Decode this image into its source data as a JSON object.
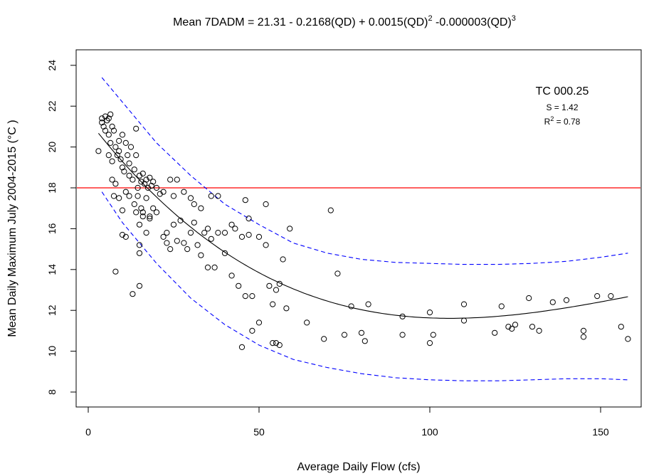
{
  "chart_data": {
    "type": "scatter",
    "title": "Mean 7DADM = 21.31 - 0.2168(QD) + 0.0015(QD)² -0.000003(QD)³",
    "title_parts": {
      "a": "Mean 7DADM = 21.31 - 0.2168(QD) + 0.0015(QD)",
      "b": " -0.000003(QD)",
      "sup2": "2",
      "sup3": "3"
    },
    "xlabel": "Average Daily Flow (cfs)",
    "ylabel": "Mean Daily Maximum July 2004-2015 (°C )",
    "xlim": [
      0,
      160
    ],
    "ylim": [
      8,
      24
    ],
    "xticks": [
      0,
      50,
      100,
      150
    ],
    "yticks": [
      8,
      10,
      12,
      14,
      16,
      18,
      20,
      22,
      24
    ],
    "grid": false,
    "annotation": {
      "site": "TC 000.25",
      "s_label": "S = 1.42",
      "r2_prefix": "R",
      "r2_sup": "2",
      "r2_suffix": " = 0.78"
    },
    "threshold": {
      "y": 18,
      "color": "#ff0000"
    },
    "colors": {
      "fit": "#000000",
      "bounds": "#0000ff",
      "points": "#000000"
    },
    "fit_coefficients": [
      21.31,
      -0.2168,
      0.0015,
      -3e-06
    ],
    "fit_range": [
      3,
      158
    ],
    "bounds": {
      "upper": [
        [
          4,
          23.4
        ],
        [
          10,
          22.2
        ],
        [
          20,
          20.2
        ],
        [
          30,
          18.6
        ],
        [
          40,
          17.2
        ],
        [
          50,
          16.2
        ],
        [
          60,
          15.3
        ],
        [
          70,
          14.8
        ],
        [
          80,
          14.5
        ],
        [
          90,
          14.35
        ],
        [
          100,
          14.3
        ],
        [
          110,
          14.25
        ],
        [
          120,
          14.25
        ],
        [
          130,
          14.3
        ],
        [
          140,
          14.4
        ],
        [
          150,
          14.6
        ],
        [
          158,
          14.8
        ]
      ],
      "lower": [
        [
          4,
          17.8
        ],
        [
          10,
          16.3
        ],
        [
          20,
          14.3
        ],
        [
          30,
          12.6
        ],
        [
          40,
          11.3
        ],
        [
          50,
          10.3
        ],
        [
          60,
          9.6
        ],
        [
          70,
          9.2
        ],
        [
          80,
          8.9
        ],
        [
          90,
          8.7
        ],
        [
          100,
          8.6
        ],
        [
          110,
          8.55
        ],
        [
          120,
          8.55
        ],
        [
          130,
          8.6
        ],
        [
          140,
          8.65
        ],
        [
          150,
          8.65
        ],
        [
          158,
          8.6
        ]
      ]
    },
    "points": [
      [
        3,
        19.8
      ],
      [
        4,
        21.4
      ],
      [
        4,
        21.2
      ],
      [
        4.5,
        21.0
      ],
      [
        5,
        21.5
      ],
      [
        5,
        20.8
      ],
      [
        5.5,
        21.3
      ],
      [
        6,
        21.4
      ],
      [
        6,
        20.6
      ],
      [
        6.5,
        21.6
      ],
      [
        7,
        21.0
      ],
      [
        7.5,
        20.8
      ],
      [
        6,
        19.6
      ],
      [
        6.5,
        20.2
      ],
      [
        7,
        19.3
      ],
      [
        7,
        18.4
      ],
      [
        7.5,
        17.6
      ],
      [
        8,
        18.2
      ],
      [
        8,
        20.0
      ],
      [
        8.5,
        19.6
      ],
      [
        9,
        19.8
      ],
      [
        9,
        20.3
      ],
      [
        9.5,
        19.4
      ],
      [
        10,
        20.6
      ],
      [
        10,
        19.0
      ],
      [
        10.5,
        18.8
      ],
      [
        11,
        20.2
      ],
      [
        11.5,
        19.6
      ],
      [
        12,
        19.2
      ],
      [
        12,
        18.6
      ],
      [
        12.5,
        20.0
      ],
      [
        13,
        18.4
      ],
      [
        13.5,
        18.9
      ],
      [
        14,
        20.9
      ],
      [
        14,
        19.6
      ],
      [
        14.5,
        18.0
      ],
      [
        15,
        18.6
      ],
      [
        15.5,
        18.3
      ],
      [
        16,
        18.7
      ],
      [
        16.5,
        18.2
      ],
      [
        17,
        18.4
      ],
      [
        17.5,
        18.0
      ],
      [
        18,
        18.5
      ],
      [
        18.5,
        18.1
      ],
      [
        19,
        18.3
      ],
      [
        13.5,
        17.2
      ],
      [
        14,
        16.8
      ],
      [
        14.5,
        17.6
      ],
      [
        15,
        16.2
      ],
      [
        15.5,
        17.0
      ],
      [
        16,
        16.6
      ],
      [
        17,
        17.5
      ],
      [
        18,
        16.6
      ],
      [
        19,
        17.0
      ],
      [
        20,
        18.0
      ],
      [
        22,
        17.8
      ],
      [
        24,
        18.4
      ],
      [
        25,
        17.6
      ],
      [
        26,
        18.4
      ],
      [
        28,
        17.8
      ],
      [
        30,
        17.5
      ],
      [
        31,
        17.2
      ],
      [
        33,
        17.0
      ],
      [
        35,
        16.0
      ],
      [
        36,
        17.6
      ],
      [
        38,
        17.6
      ],
      [
        40,
        15.8
      ],
      [
        42,
        16.2
      ],
      [
        43,
        16.0
      ],
      [
        45,
        15.6
      ],
      [
        47,
        15.7
      ],
      [
        22,
        15.6
      ],
      [
        23,
        15.8
      ],
      [
        24,
        15.0
      ],
      [
        25,
        16.2
      ],
      [
        26,
        15.4
      ],
      [
        28,
        15.3
      ],
      [
        29,
        15.0
      ],
      [
        30,
        15.8
      ],
      [
        31,
        16.3
      ],
      [
        32,
        15.2
      ],
      [
        33,
        14.7
      ],
      [
        35,
        14.1
      ],
      [
        36,
        15.5
      ],
      [
        38,
        15.8
      ],
      [
        40,
        14.8
      ],
      [
        42,
        13.7
      ],
      [
        44,
        13.2
      ],
      [
        46,
        12.7
      ],
      [
        48,
        12.7
      ],
      [
        50,
        15.6
      ],
      [
        52,
        15.2
      ],
      [
        52,
        17.2
      ],
      [
        53,
        13.2
      ],
      [
        54,
        12.3
      ],
      [
        55,
        13.0
      ],
      [
        56,
        13.3
      ],
      [
        57,
        14.5
      ],
      [
        58,
        12.1
      ],
      [
        59,
        16.0
      ],
      [
        46,
        17.4
      ],
      [
        47,
        16.5
      ],
      [
        48,
        11.0
      ],
      [
        45,
        10.2
      ],
      [
        50,
        11.4
      ],
      [
        54,
        10.4
      ],
      [
        55,
        10.4
      ],
      [
        56,
        10.3
      ],
      [
        64,
        11.4
      ],
      [
        69,
        10.6
      ],
      [
        71,
        16.9
      ],
      [
        73,
        13.8
      ],
      [
        75,
        10.8
      ],
      [
        77,
        12.2
      ],
      [
        80,
        10.9
      ],
      [
        81,
        10.5
      ],
      [
        82,
        12.3
      ],
      [
        92,
        11.7
      ],
      [
        92,
        10.8
      ],
      [
        100,
        11.9
      ],
      [
        100,
        10.4
      ],
      [
        101,
        10.8
      ],
      [
        110,
        12.3
      ],
      [
        110,
        11.5
      ],
      [
        119,
        10.9
      ],
      [
        121,
        12.2
      ],
      [
        123,
        11.2
      ],
      [
        124,
        11.1
      ],
      [
        125,
        11.3
      ],
      [
        129,
        12.6
      ],
      [
        130,
        11.2
      ],
      [
        132,
        11.0
      ],
      [
        136,
        12.4
      ],
      [
        140,
        12.5
      ],
      [
        145,
        11.0
      ],
      [
        145,
        10.7
      ],
      [
        149,
        12.7
      ],
      [
        153,
        12.7
      ],
      [
        156,
        11.2
      ],
      [
        158,
        10.6
      ],
      [
        8,
        13.9
      ],
      [
        10,
        15.7
      ],
      [
        11,
        15.6
      ],
      [
        13,
        12.8
      ],
      [
        15,
        15.2
      ],
      [
        15,
        14.8
      ],
      [
        15,
        13.2
      ],
      [
        16,
        16.8
      ],
      [
        17,
        15.8
      ],
      [
        18,
        16.5
      ],
      [
        9,
        17.5
      ],
      [
        10,
        16.9
      ],
      [
        11,
        17.8
      ],
      [
        12,
        17.6
      ],
      [
        20,
        16.8
      ],
      [
        21,
        17.7
      ],
      [
        23,
        15.3
      ],
      [
        27,
        16.4
      ],
      [
        34,
        15.8
      ],
      [
        37,
        14.1
      ]
    ]
  }
}
